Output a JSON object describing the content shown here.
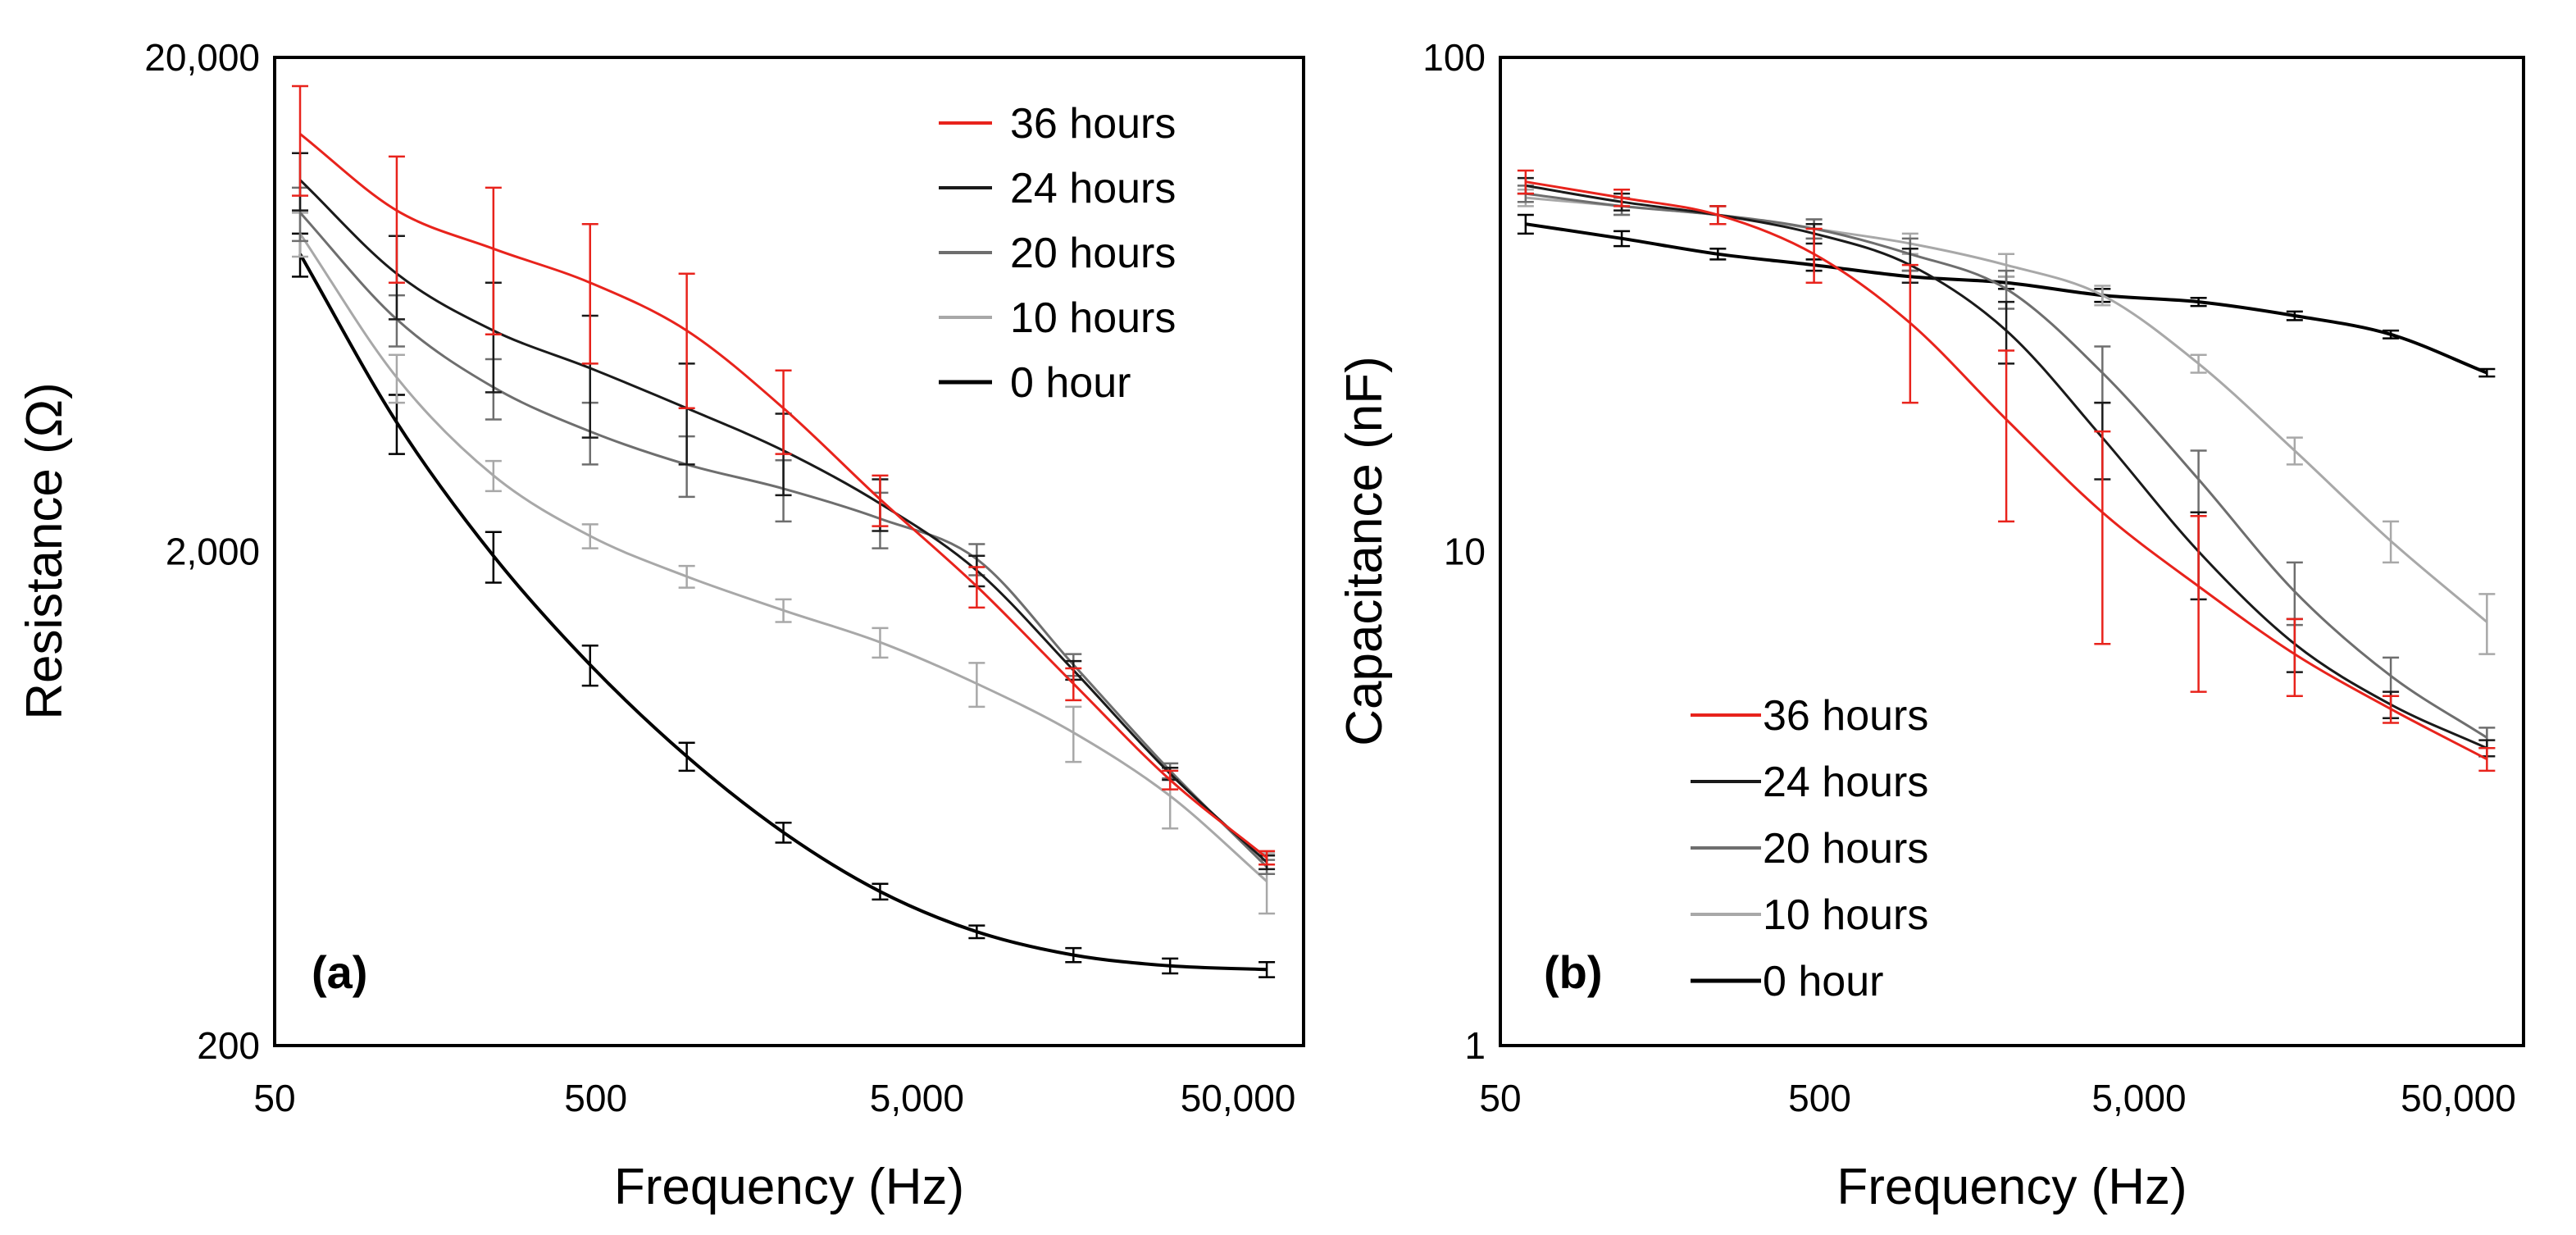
{
  "chart_data": [
    {
      "type": "line",
      "panel_label": "(a)",
      "xlabel": "Frequency (Hz)",
      "ylabel": "Resistance (Ω)",
      "x_scale": "log",
      "y_scale": "log",
      "xlim": [
        50,
        80000
      ],
      "ylim": [
        200,
        20000
      ],
      "x_ticks": [
        50,
        500,
        5000,
        50000
      ],
      "x_tick_labels": [
        "50",
        "500",
        "5,000",
        "50,000"
      ],
      "y_ticks": [
        200,
        2000,
        20000
      ],
      "y_tick_labels": [
        "200",
        "2,000",
        "20,000"
      ],
      "grid": false,
      "legend_position": "top-right",
      "x": [
        60,
        120,
        240,
        480,
        960,
        1920,
        3840,
        7680,
        15360,
        30720,
        61440
      ],
      "series": [
        {
          "name": "36 hours",
          "color": "#e8231c",
          "stroke_width": 3,
          "values": [
            14000,
            9800,
            8200,
            7000,
            5600,
            3900,
            2550,
            1700,
            1080,
            690,
            480
          ],
          "errors": [
            3500,
            2800,
            2700,
            2200,
            1700,
            750,
            300,
            160,
            80,
            30,
            15
          ]
        },
        {
          "name": "24 hours",
          "color": "#1a1a1a",
          "stroke_width": 3,
          "values": [
            11300,
            7300,
            5600,
            4700,
            3900,
            3200,
            2500,
            1830,
            1150,
            710,
            470
          ],
          "errors": [
            1500,
            1400,
            1400,
            1300,
            900,
            600,
            300,
            130,
            50,
            20,
            15
          ]
        },
        {
          "name": "20 hours",
          "color": "#6e6e6e",
          "stroke_width": 3,
          "values": [
            9700,
            5900,
            4300,
            3500,
            3000,
            2680,
            2330,
            1930,
            1180,
            720,
            460
          ],
          "errors": [
            1200,
            700,
            600,
            500,
            420,
            380,
            300,
            140,
            60,
            25,
            15
          ]
        },
        {
          "name": "10 hours",
          "color": "#a8a8a8",
          "stroke_width": 3,
          "values": [
            8800,
            4500,
            2850,
            2150,
            1780,
            1520,
            1310,
            1080,
            860,
            640,
            430
          ],
          "errors": [
            900,
            500,
            200,
            120,
            90,
            80,
            90,
            110,
            110,
            90,
            60
          ]
        },
        {
          "name": "0 hour",
          "color": "#000000",
          "stroke_width": 4,
          "values": [
            8000,
            3650,
            1960,
            1180,
            770,
            540,
            410,
            340,
            305,
            290,
            285
          ],
          "errors": [
            800,
            500,
            230,
            110,
            50,
            25,
            15,
            10,
            10,
            10,
            10
          ]
        }
      ]
    },
    {
      "type": "line",
      "panel_label": "(b)",
      "xlabel": "Frequency (Hz)",
      "ylabel": "Capacitance (nF)",
      "x_scale": "log",
      "y_scale": "log",
      "xlim": [
        50,
        80000
      ],
      "ylim": [
        1,
        100
      ],
      "x_ticks": [
        50,
        500,
        5000,
        50000
      ],
      "x_tick_labels": [
        "50",
        "500",
        "5,000",
        "50,000"
      ],
      "y_ticks": [
        1,
        10,
        100
      ],
      "y_tick_labels": [
        "1",
        "10",
        "100"
      ],
      "grid": false,
      "legend_position": "bottom-left",
      "x": [
        60,
        120,
        240,
        480,
        960,
        1920,
        3840,
        7680,
        15360,
        30720,
        61440
      ],
      "series": [
        {
          "name": "36 hours",
          "color": "#e8231c",
          "stroke_width": 3,
          "values": [
            56,
            52,
            48,
            40,
            29,
            18.5,
            12,
            8.5,
            6.2,
            4.8,
            3.8
          ],
          "errors": [
            3,
            2,
            2,
            5,
            9,
            7,
            5.5,
            3.3,
            1.1,
            0.3,
            0.2
          ]
        },
        {
          "name": "24 hours",
          "color": "#1a1a1a",
          "stroke_width": 3,
          "values": [
            55,
            51,
            48,
            44,
            38,
            28,
            17,
            10,
            6.5,
            4.9,
            4.0
          ],
          "errors": [
            2,
            2,
            2,
            2,
            3,
            4,
            3,
            2,
            0.8,
            0.3,
            0.15
          ]
        },
        {
          "name": "20 hours",
          "color": "#6e6e6e",
          "stroke_width": 3,
          "values": [
            53,
            50,
            48,
            45,
            40,
            34,
            23,
            14,
            8.3,
            5.6,
            4.2
          ],
          "errors": [
            2,
            2,
            2,
            2,
            3,
            3,
            3,
            2,
            1.2,
            0.5,
            0.2
          ]
        },
        {
          "name": "10 hours",
          "color": "#a8a8a8",
          "stroke_width": 3,
          "values": [
            52,
            50,
            48,
            45,
            42,
            38,
            33,
            24,
            16,
            10.5,
            7.2
          ],
          "errors": [
            2,
            2,
            2,
            2,
            2,
            2,
            1.5,
            1,
            1,
            1,
            1
          ]
        },
        {
          "name": "0 hour",
          "color": "#000000",
          "stroke_width": 4,
          "values": [
            46,
            43,
            40,
            38,
            36,
            35,
            33,
            32,
            30,
            27.5,
            23
          ],
          "errors": [
            2,
            1.5,
            1,
            1,
            1,
            1,
            1,
            0.6,
            0.6,
            0.5,
            0.4
          ]
        }
      ]
    }
  ]
}
